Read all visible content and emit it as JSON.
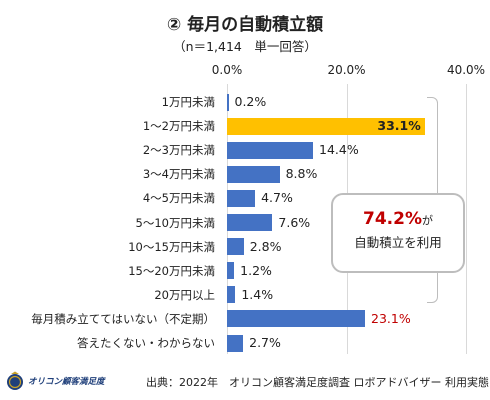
{
  "header": {
    "title": "② 毎月の自動積立額",
    "subtitle": "（n＝1,414　単一回答）"
  },
  "chart_data": {
    "type": "bar",
    "orientation": "horizontal",
    "title": "② 毎月の自動積立額",
    "subtitle": "（n＝1,414　単一回答）",
    "xlim": [
      0,
      40
    ],
    "x_ticks": [
      "0.0%",
      "20.0%",
      "40.0%"
    ],
    "x_tick_values": [
      0,
      20,
      40
    ],
    "grid": true,
    "categories": [
      "1万円未満",
      "1～2万円未満",
      "2～3万円未満",
      "3～4万円未満",
      "4～5万円未満",
      "5～10万円未満",
      "10～15万円未満",
      "15～20万円未満",
      "20万円以上",
      "毎月積み立ててはいない（不定期）",
      "答えたくない・わからない"
    ],
    "values": [
      0.2,
      33.1,
      14.4,
      8.8,
      4.7,
      7.6,
      2.8,
      1.2,
      1.4,
      23.1,
      2.7
    ],
    "value_labels": [
      "0.2%",
      "33.1%",
      "14.4%",
      "8.8%",
      "4.7%",
      "7.6%",
      "2.8%",
      "1.2%",
      "1.4%",
      "23.1%",
      "2.7%"
    ],
    "label_inside": [
      false,
      true,
      false,
      false,
      false,
      false,
      false,
      false,
      false,
      false,
      false
    ],
    "bar_colors": [
      "#4472c4",
      "#ffc000",
      "#4472c4",
      "#4472c4",
      "#4472c4",
      "#4472c4",
      "#4472c4",
      "#4472c4",
      "#4472c4",
      "#4472c4",
      "#4472c4"
    ],
    "label_colors": [
      "#222222",
      "#222222",
      "#222222",
      "#222222",
      "#222222",
      "#222222",
      "#222222",
      "#222222",
      "#222222",
      "#c00000",
      "#222222"
    ],
    "annotation": {
      "percent": "74.",
      "percent2": "2%",
      "suffix": "が",
      "line2": "自動積立を利用"
    }
  },
  "footer": {
    "logo_text": "オリコン顧客満足度",
    "source": "出典：2022年　オリコン顧客満足度調査 ロボアドバイザー 利用実態"
  },
  "colors": {
    "primary_bar": "#4472c4",
    "highlight_bar": "#ffc000",
    "accent_red": "#c00000",
    "logo_navy": "#1f3f7a",
    "logo_gold": "#c9a227"
  },
  "icons": {
    "logo": "oricon-medal-icon"
  }
}
